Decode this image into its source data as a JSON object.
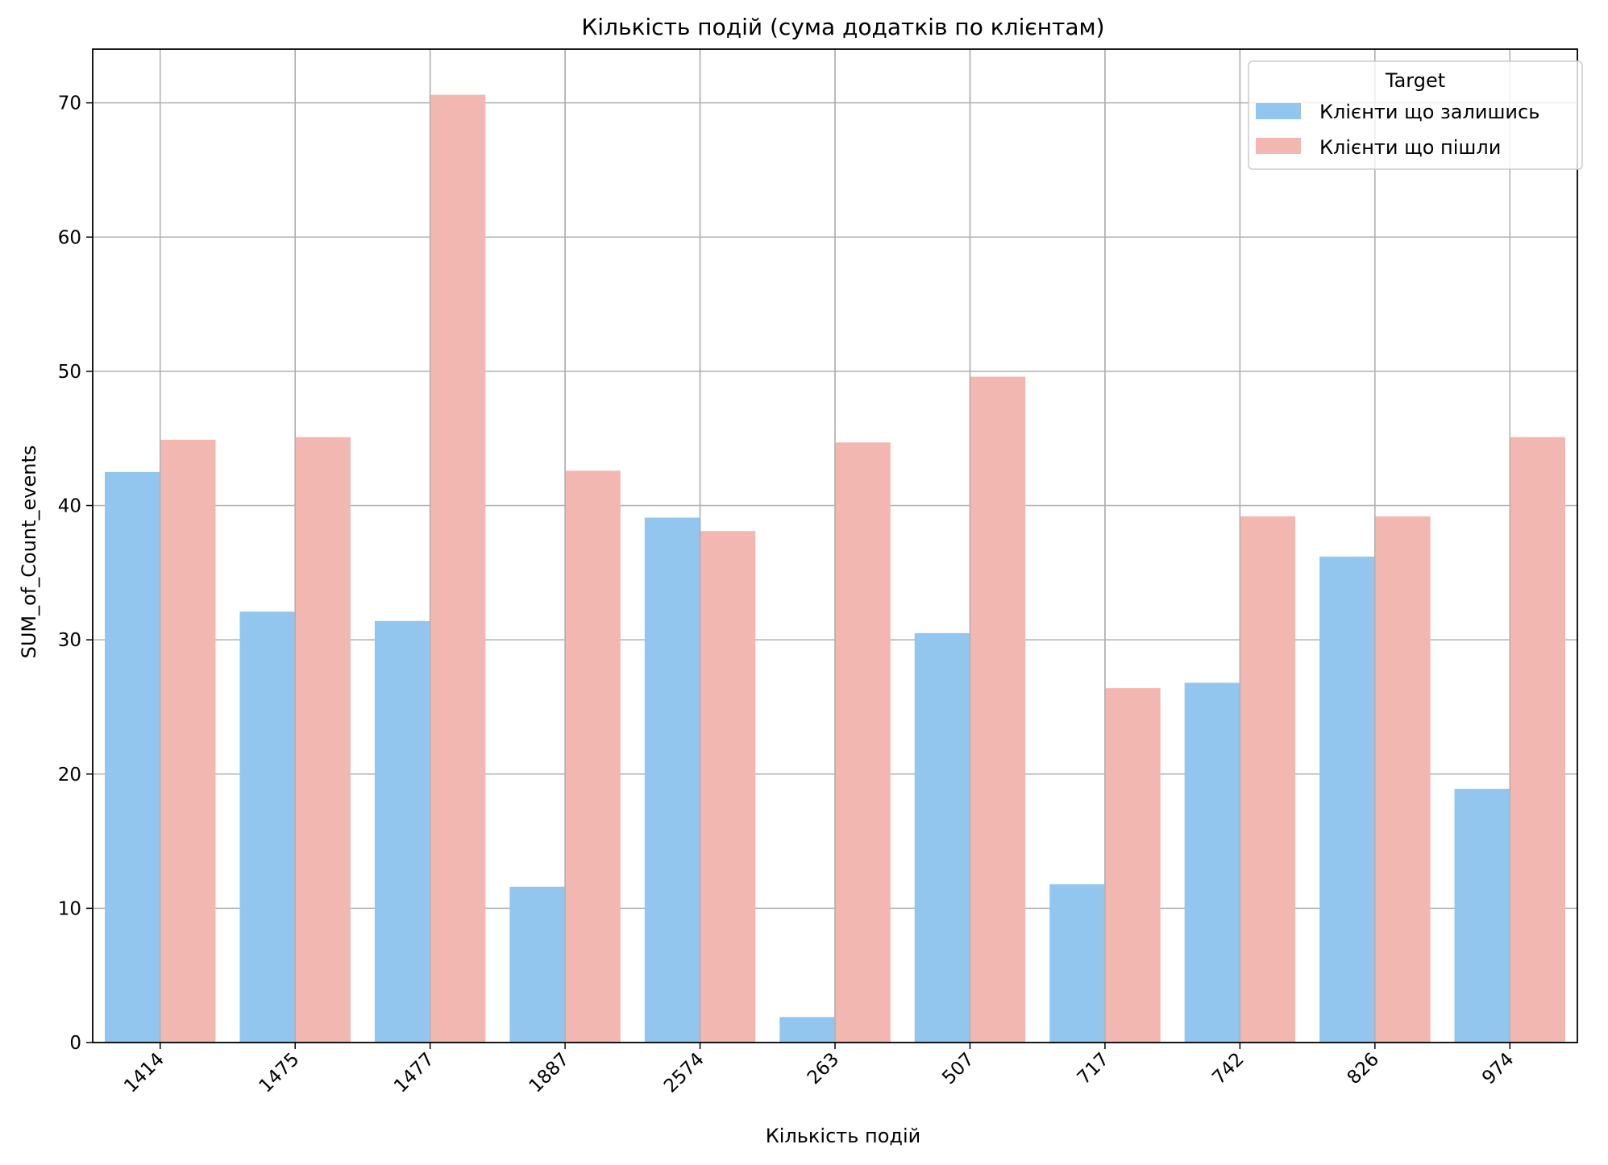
{
  "chart_data": {
    "type": "bar",
    "title": "Кількість подій (сума додатків по клієнтам)",
    "xlabel": "Кількість подій",
    "ylabel": "SUM_of_Count_events",
    "categories": [
      "1414",
      "1475",
      "1477",
      "1887",
      "2574",
      "263",
      "507",
      "717",
      "742",
      "826",
      "974"
    ],
    "series": [
      {
        "name": "Клієнти що залишись",
        "color": "#92C6EE",
        "values": [
          42.5,
          32.1,
          31.4,
          11.6,
          39.1,
          1.9,
          30.5,
          11.8,
          26.8,
          36.2,
          18.9
        ]
      },
      {
        "name": "Клієнти що пішли",
        "color": "#F2B7B0",
        "values": [
          44.9,
          45.1,
          70.6,
          42.6,
          38.1,
          44.7,
          49.6,
          26.4,
          39.2,
          39.2,
          45.1
        ]
      }
    ],
    "ylim": [
      0,
      74
    ],
    "yticks": [
      0,
      10,
      20,
      30,
      40,
      50,
      60,
      70
    ],
    "grid": true,
    "legend": {
      "title": "Target",
      "position": "top-right"
    }
  }
}
